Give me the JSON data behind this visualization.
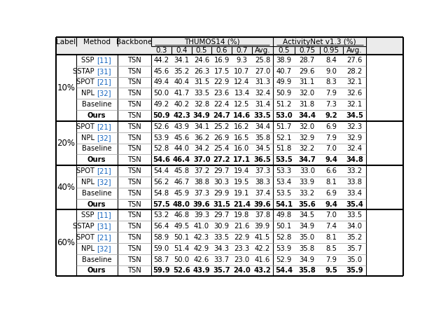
{
  "col_positions": [
    0,
    37,
    113,
    176,
    213,
    250,
    287,
    324,
    361,
    400,
    440,
    486,
    529,
    572,
    640
  ],
  "header1": {
    "label": "Label",
    "method": "Method",
    "backbone": "Backbone",
    "thumos": "THUMOS14 (%)",
    "actnet": "ActivityNet v1.3 (%)",
    "thumos_span": [
      3,
      9
    ],
    "actnet_span": [
      9,
      14
    ]
  },
  "header2": [
    "0.3",
    "0.4",
    "0.5",
    "0.6",
    "0.7",
    "Avg.",
    "0.5",
    "0.75",
    "0.95",
    "Avg."
  ],
  "sections": [
    {
      "label": "10%",
      "rows": [
        {
          "method": "SSP",
          "cite": "[11]",
          "backbone": "TSN",
          "vals": [
            "44.2",
            "34.1",
            "24.6",
            "16.9",
            "9.3",
            "25.8",
            "38.9",
            "28.7",
            "8.4",
            "27.6"
          ],
          "bold": false
        },
        {
          "method": "SSTAP",
          "cite": "[31]",
          "backbone": "TSN",
          "vals": [
            "45.6",
            "35.2",
            "26.3",
            "17.5",
            "10.7",
            "27.0",
            "40.7",
            "29.6",
            "9.0",
            "28.2"
          ],
          "bold": false
        },
        {
          "method": "SPOT",
          "cite": "[21]",
          "backbone": "TSN",
          "vals": [
            "49.4",
            "40.4",
            "31.5",
            "22.9",
            "12.4",
            "31.3",
            "49.9",
            "31.1",
            "8.3",
            "32.1"
          ],
          "bold": false
        },
        {
          "method": "NPL",
          "cite": "[32]",
          "backbone": "TSN",
          "vals": [
            "50.0",
            "41.7",
            "33.5",
            "23.6",
            "13.4",
            "32.4",
            "50.9",
            "32.0",
            "7.9",
            "32.6"
          ],
          "bold": false
        },
        {
          "method": "Baseline",
          "cite": null,
          "backbone": "TSN",
          "vals": [
            "49.2",
            "40.2",
            "32.8",
            "22.4",
            "12.5",
            "31.4",
            "51.2",
            "31.8",
            "7.3",
            "32.1"
          ],
          "bold": false
        },
        {
          "method": "Ours",
          "cite": null,
          "backbone": "TSN",
          "vals": [
            "50.9",
            "42.3",
            "34.9",
            "24.7",
            "14.6",
            "33.5",
            "53.0",
            "34.4",
            "9.2",
            "34.5"
          ],
          "bold": true
        }
      ]
    },
    {
      "label": "20%",
      "rows": [
        {
          "method": "SPOT",
          "cite": "[21]",
          "backbone": "TSN",
          "vals": [
            "52.6",
            "43.9",
            "34.1",
            "25.2",
            "16.2",
            "34.4",
            "51.7",
            "32.0",
            "6.9",
            "32.3"
          ],
          "bold": false
        },
        {
          "method": "NPL",
          "cite": "[32]",
          "backbone": "TSN",
          "vals": [
            "53.9",
            "45.6",
            "36.2",
            "26.9",
            "16.5",
            "35.8",
            "52.1",
            "32.9",
            "7.9",
            "32.9"
          ],
          "bold": false
        },
        {
          "method": "Baseline",
          "cite": null,
          "backbone": "TSN",
          "vals": [
            "52.8",
            "44.0",
            "34.2",
            "25.4",
            "16.0",
            "34.5",
            "51.8",
            "32.2",
            "7.0",
            "32.4"
          ],
          "bold": false
        },
        {
          "method": "Ours",
          "cite": null,
          "backbone": "TSN",
          "vals": [
            "54.6",
            "46.4",
            "37.0",
            "27.2",
            "17.1",
            "36.5",
            "53.5",
            "34.7",
            "9.4",
            "34.8"
          ],
          "bold": true
        }
      ]
    },
    {
      "label": "40%",
      "rows": [
        {
          "method": "SPOT",
          "cite": "[21]",
          "backbone": "TSN",
          "vals": [
            "54.4",
            "45.8",
            "37.2",
            "29.7",
            "19.4",
            "37.3",
            "53.3",
            "33.0",
            "6.6",
            "33.2"
          ],
          "bold": false
        },
        {
          "method": "NPL",
          "cite": "[32]",
          "backbone": "TSN",
          "vals": [
            "56.2",
            "46.7",
            "38.8",
            "30.3",
            "19.5",
            "38.3",
            "53.4",
            "33.9",
            "8.1",
            "33.8"
          ],
          "bold": false
        },
        {
          "method": "Baseline",
          "cite": null,
          "backbone": "TSN",
          "vals": [
            "54.8",
            "45.9",
            "37.3",
            "29.9",
            "19.1",
            "37.4",
            "53.5",
            "33.2",
            "6.9",
            "33.4"
          ],
          "bold": false
        },
        {
          "method": "Ours",
          "cite": null,
          "backbone": "TSN",
          "vals": [
            "57.5",
            "48.0",
            "39.6",
            "31.5",
            "21.4",
            "39.6",
            "54.1",
            "35.6",
            "9.4",
            "35.4"
          ],
          "bold": true
        }
      ]
    },
    {
      "label": "60%",
      "rows": [
        {
          "method": "SSP",
          "cite": "[11]",
          "backbone": "TSN",
          "vals": [
            "53.2",
            "46.8",
            "39.3",
            "29.7",
            "19.8",
            "37.8",
            "49.8",
            "34.5",
            "7.0",
            "33.5"
          ],
          "bold": false
        },
        {
          "method": "SSTAP",
          "cite": "[31]",
          "backbone": "TSN",
          "vals": [
            "56.4",
            "49.5",
            "41.0",
            "30.9",
            "21.6",
            "39.9",
            "50.1",
            "34.9",
            "7.4",
            "34.0"
          ],
          "bold": false
        },
        {
          "method": "SPOT",
          "cite": "[21]",
          "backbone": "TSN",
          "vals": [
            "58.9",
            "50.1",
            "42.3",
            "33.5",
            "22.9",
            "41.5",
            "52.8",
            "35.0",
            "8.1",
            "35.2"
          ],
          "bold": false
        },
        {
          "method": "NPL",
          "cite": "[32]",
          "backbone": "TSN",
          "vals": [
            "59.0",
            "51.4",
            "42.9",
            "34.3",
            "23.3",
            "42.2",
            "53.9",
            "35.8",
            "8.5",
            "35.7"
          ],
          "bold": false
        },
        {
          "method": "Baseline",
          "cite": null,
          "backbone": "TSN",
          "vals": [
            "58.7",
            "50.0",
            "42.6",
            "33.7",
            "23.0",
            "41.6",
            "52.9",
            "34.9",
            "7.9",
            "35.0"
          ],
          "bold": false
        },
        {
          "method": "Ours",
          "cite": null,
          "backbone": "TSN",
          "vals": [
            "59.9",
            "52.6",
            "43.9",
            "35.7",
            "24.0",
            "43.2",
            "54.4",
            "35.8",
            "9.5",
            "35.9"
          ],
          "bold": true
        }
      ]
    }
  ],
  "cite_color": "#1565C0",
  "header_bg": "#EBEBEB",
  "thick_lw": 1.5,
  "thin_lw": 0.5,
  "mid_lw": 0.8,
  "fontsize_header": 7.5,
  "fontsize_data": 7.2,
  "fontsize_label": 8.5
}
